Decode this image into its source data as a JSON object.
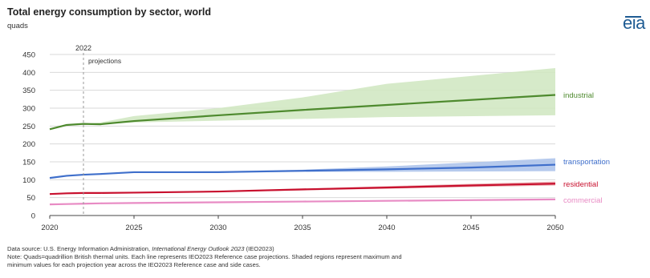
{
  "header": {
    "title": "Total energy consumption by sector, world",
    "unit": "quads",
    "logo_text": "eia"
  },
  "annotations": {
    "year_marker": "2022",
    "projections_label": "projections"
  },
  "footer": {
    "source_prefix": "Data source: U.S. Energy Information Administration, ",
    "source_italic": "International Energy Outlook 2023",
    "source_suffix": " (IEO2023)",
    "note_line1": "Note: Quads=quadrillion British thermal units. Each line represents IEO2023 Reference case projections. Shaded regions represent maximum and",
    "note_line2": "minimum values for each projection year across the IEO2023 Reference case and side cases."
  },
  "chart_data": {
    "type": "line",
    "title": "Total energy consumption by sector, world",
    "ylabel": "quads",
    "xlabel": "",
    "xlim": [
      2020,
      2050
    ],
    "ylim": [
      0,
      450
    ],
    "x_ticks": [
      2020,
      2025,
      2030,
      2035,
      2040,
      2045,
      2050
    ],
    "y_ticks": [
      0,
      50,
      100,
      150,
      200,
      250,
      300,
      350,
      400,
      450
    ],
    "grid": "horizontal",
    "projection_start": 2022,
    "series": [
      {
        "name": "industrial",
        "color": "#4e8a2e",
        "band_color": "#cfe6bf",
        "x": [
          2020,
          2021,
          2022,
          2023,
          2025,
          2030,
          2035,
          2040,
          2045,
          2050
        ],
        "values": [
          241,
          253,
          256,
          255,
          264,
          280,
          295,
          309,
          323,
          337
        ],
        "band_lower": [
          256,
          255,
          260,
          265,
          270,
          275,
          280
        ],
        "band_upper": [
          256,
          260,
          278,
          300,
          330,
          368,
          412
        ],
        "band_x": [
          2022,
          2023,
          2025,
          2030,
          2035,
          2040,
          2050
        ]
      },
      {
        "name": "transportation",
        "color": "#3f6fcb",
        "band_color": "#a9c1ea",
        "x": [
          2020,
          2021,
          2022,
          2023,
          2025,
          2030,
          2035,
          2040,
          2045,
          2050
        ],
        "values": [
          105,
          111,
          114,
          116,
          121,
          121,
          125,
          129,
          134,
          142
        ],
        "band_lower": [
          114,
          116,
          120,
          120,
          122,
          122,
          124
        ],
        "band_upper": [
          114,
          117,
          122,
          124,
          128,
          137,
          160
        ],
        "band_x": [
          2022,
          2023,
          2025,
          2030,
          2035,
          2040,
          2050
        ]
      },
      {
        "name": "residential",
        "color": "#c8102e",
        "band_color": "#e9a3a8",
        "x": [
          2020,
          2021,
          2022,
          2023,
          2025,
          2030,
          2035,
          2040,
          2045,
          2050
        ],
        "values": [
          60,
          62,
          63,
          63,
          64,
          67,
          73,
          78,
          84,
          89
        ],
        "band_lower": [
          63,
          63,
          64,
          66,
          70,
          75,
          84
        ],
        "band_upper": [
          63,
          64,
          65,
          68,
          75,
          82,
          95
        ],
        "band_x": [
          2022,
          2023,
          2025,
          2030,
          2035,
          2040,
          2050
        ]
      },
      {
        "name": "commercial",
        "color": "#e88bc4",
        "band_color": "#f6cfe6",
        "x": [
          2020,
          2021,
          2022,
          2023,
          2025,
          2030,
          2035,
          2040,
          2045,
          2050
        ],
        "values": [
          31,
          32,
          33,
          34,
          35,
          37,
          39,
          41,
          43,
          45
        ],
        "band_lower": [
          33,
          34,
          35,
          36,
          38,
          40,
          43
        ],
        "band_upper": [
          33,
          34,
          35,
          37,
          40,
          43,
          47
        ],
        "band_x": [
          2022,
          2023,
          2025,
          2030,
          2035,
          2040,
          2050
        ]
      }
    ]
  }
}
